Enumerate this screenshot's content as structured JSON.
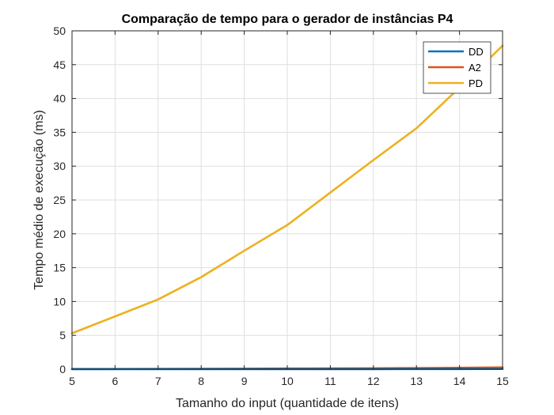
{
  "chart_data": {
    "type": "line",
    "title": "Comparação de tempo para o gerador de instâncias P4",
    "xlabel": "Tamanho do input (quantidade de itens)",
    "ylabel": "Tempo médio de execução (ms)",
    "xlim": [
      5,
      15
    ],
    "ylim": [
      0,
      50
    ],
    "xticks": [
      5,
      6,
      7,
      8,
      9,
      10,
      11,
      12,
      13,
      14,
      15
    ],
    "yticks": [
      0,
      5,
      10,
      15,
      20,
      25,
      30,
      35,
      40,
      45,
      50
    ],
    "grid": true,
    "legend_position": "top-right",
    "x": [
      5,
      6,
      7,
      8,
      9,
      10,
      11,
      12,
      13,
      14,
      15
    ],
    "series": [
      {
        "name": "DD",
        "color": "#0072BD",
        "values": [
          0.01,
          0.01,
          0.01,
          0.01,
          0.01,
          0.01,
          0.01,
          0.01,
          0.02,
          0.02,
          0.03
        ]
      },
      {
        "name": "A2",
        "color": "#D95319",
        "values": [
          0.02,
          0.03,
          0.04,
          0.05,
          0.07,
          0.09,
          0.11,
          0.13,
          0.16,
          0.2,
          0.25
        ]
      },
      {
        "name": "PD",
        "color": "#EDB120",
        "values": [
          5.3,
          7.8,
          10.3,
          13.6,
          17.5,
          21.3,
          26.1,
          30.9,
          35.6,
          41.6,
          47.8
        ]
      }
    ]
  }
}
